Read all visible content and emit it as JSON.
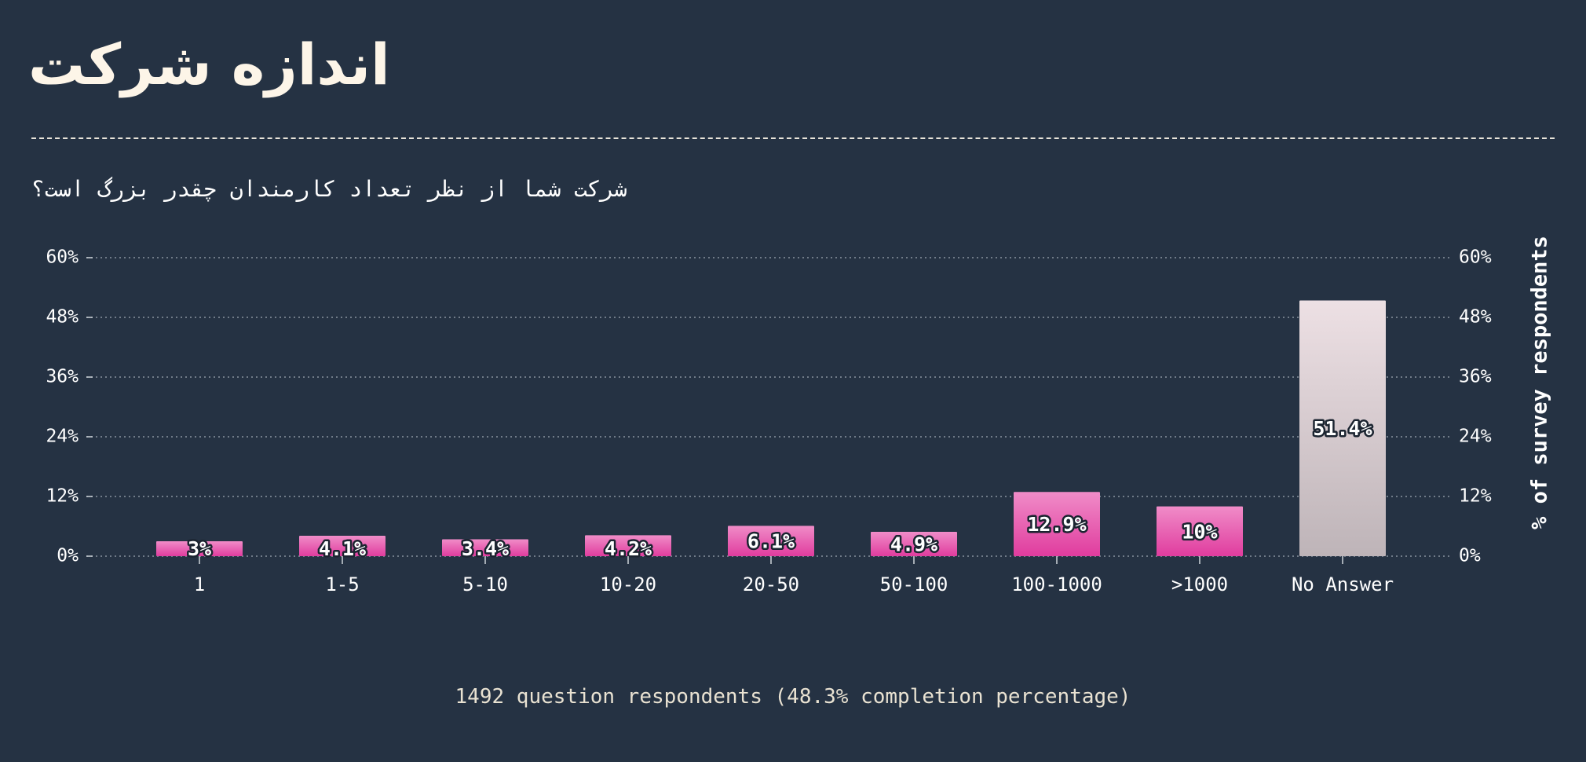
{
  "title": "اندازه شرکت",
  "subtitle": "شرکت شما از نظر تعداد کارمندان چقدر بزرگ است؟",
  "footer": "1492 question respondents (48.3% completion percentage)",
  "colors": {
    "background": "#253243",
    "bar_top": "#f08cc8",
    "bar_bottom": "#e03c9e",
    "na_top": "#ede0e4",
    "na_bottom": "#beb4b8",
    "grid": "#8a93a0",
    "text": "#ffffff"
  },
  "chart_data": {
    "type": "bar",
    "categories": [
      "1",
      "1-5",
      "5-10",
      "10-20",
      "20-50",
      "50-100",
      "100-1000",
      ">1000",
      "No Answer"
    ],
    "values": [
      3,
      4.1,
      3.4,
      4.2,
      6.1,
      4.9,
      12.9,
      10,
      51.4
    ],
    "data_labels": [
      "3%",
      "4.1%",
      "3.4%",
      "4.2%",
      "6.1%",
      "4.9%",
      "12.9%",
      "10%",
      "51.4%"
    ],
    "ylabel": "% of survey respondents",
    "ylim": [
      0,
      60
    ],
    "yticks": [
      0,
      12,
      24,
      36,
      48,
      60
    ],
    "ytick_labels": [
      "0%",
      "12%",
      "24%",
      "36%",
      "48%",
      "60%"
    ],
    "grid": true,
    "y_axis_both_sides": true
  }
}
